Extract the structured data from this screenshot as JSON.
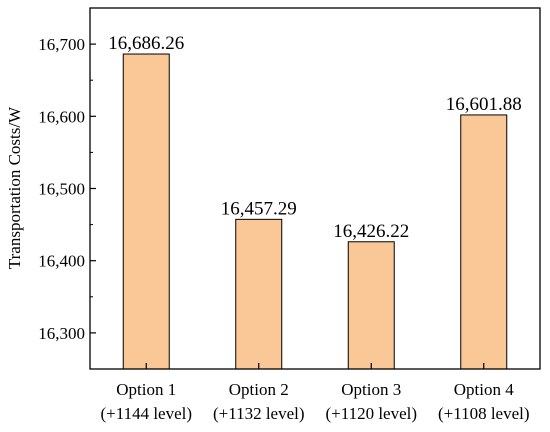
{
  "chart_data": {
    "type": "bar",
    "title": "",
    "xlabel": "",
    "ylabel": "Transportation Costs/W",
    "categories": [
      [
        "Option 1",
        "(+1144 level)"
      ],
      [
        "Option 2",
        "(+1132 level)"
      ],
      [
        "Option 3",
        "(+1120 level)"
      ],
      [
        "Option 4",
        "(+1108 level)"
      ]
    ],
    "values": [
      16686.26,
      16457.29,
      16426.22,
      16601.88
    ],
    "data_labels": [
      "16,686.26",
      "16,457.29",
      "16,426.22",
      "16,601.88"
    ],
    "ylim": [
      16250,
      16750
    ],
    "yticks": [
      16300,
      16400,
      16500,
      16600,
      16700
    ],
    "ytick_labels": [
      "16,300",
      "16,400",
      "16,500",
      "16,600",
      "16,700"
    ],
    "grid": false,
    "bar_color": "#fac896",
    "bar_edge_color": "#000000"
  }
}
